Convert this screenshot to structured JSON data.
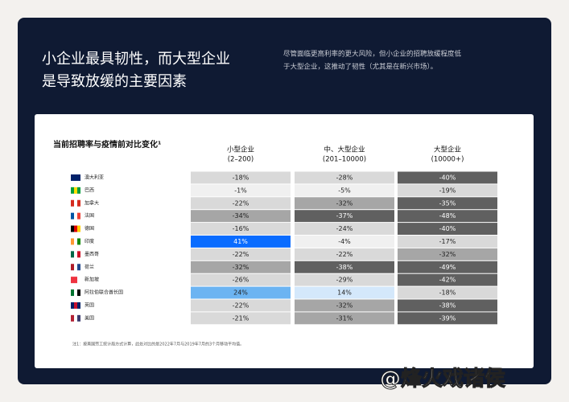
{
  "header": {
    "title": [
      "小企业最具韧性，而大型企业",
      "是导致放缓的主要因素"
    ],
    "description": [
      "尽管面临更高利率的更大风险，但小企业的招聘放缓程度低",
      "于大型企业，这推动了韧性（尤其是在新兴市场）。"
    ]
  },
  "table": {
    "caption": "当前招聘率与疫情前对比变化¹",
    "columns": [
      [
        "小型企业",
        "(2–200)"
      ],
      [
        "中、大型企业",
        "(201–10000)"
      ],
      [
        "大型企业",
        "(10000+)"
      ]
    ],
    "rows": [
      {
        "country": "澳大利亚",
        "cells": [
          {
            "text": "-18%",
            "color": "#d9d9d9"
          },
          {
            "text": "-28%",
            "color": "#d9d9d9"
          },
          {
            "text": "-40%",
            "color": "#606060"
          }
        ]
      },
      {
        "country": "巴西",
        "cells": [
          {
            "text": "-1%",
            "color": "#f0f0f0"
          },
          {
            "text": "-5%",
            "color": "#f0f0f0"
          },
          {
            "text": "-19%",
            "color": "#d9d9d9"
          }
        ]
      },
      {
        "country": "加拿大",
        "cells": [
          {
            "text": "-22%",
            "color": "#d9d9d9"
          },
          {
            "text": "-32%",
            "color": "#a6a6a6"
          },
          {
            "text": "-35%",
            "color": "#606060"
          }
        ]
      },
      {
        "country": "法国",
        "cells": [
          {
            "text": "-34%",
            "color": "#a6a6a6"
          },
          {
            "text": "-37%",
            "color": "#606060"
          },
          {
            "text": "-48%",
            "color": "#606060"
          }
        ]
      },
      {
        "country": "德国",
        "cells": [
          {
            "text": "-16%",
            "color": "#d9d9d9"
          },
          {
            "text": "-24%",
            "color": "#d9d9d9"
          },
          {
            "text": "-40%",
            "color": "#606060"
          }
        ]
      },
      {
        "country": "印度",
        "cells": [
          {
            "text": "41%",
            "color": "#0a6cff"
          },
          {
            "text": "-4%",
            "color": "#f0f0f0"
          },
          {
            "text": "-17%",
            "color": "#d9d9d9"
          }
        ]
      },
      {
        "country": "墨西哥",
        "cells": [
          {
            "text": "-22%",
            "color": "#d9d9d9"
          },
          {
            "text": "-22%",
            "color": "#d9d9d9"
          },
          {
            "text": "-32%",
            "color": "#a6a6a6"
          }
        ]
      },
      {
        "country": "荷兰",
        "cells": [
          {
            "text": "-32%",
            "color": "#a6a6a6"
          },
          {
            "text": "-38%",
            "color": "#606060"
          },
          {
            "text": "-49%",
            "color": "#606060"
          }
        ]
      },
      {
        "country": "新加坡",
        "cells": [
          {
            "text": "-26%",
            "color": "#d9d9d9"
          },
          {
            "text": "-29%",
            "color": "#d9d9d9"
          },
          {
            "text": "-42%",
            "color": "#606060"
          }
        ]
      },
      {
        "country": "阿拉伯联合酋长国",
        "cells": [
          {
            "text": "24%",
            "color": "#6cb4f2"
          },
          {
            "text": "14%",
            "color": "#d4e8fb"
          },
          {
            "text": "-18%",
            "color": "#d9d9d9"
          }
        ]
      },
      {
        "country": "英国",
        "cells": [
          {
            "text": "-22%",
            "color": "#d9d9d9"
          },
          {
            "text": "-32%",
            "color": "#a6a6a6"
          },
          {
            "text": "-38%",
            "color": "#606060"
          }
        ]
      },
      {
        "country": "美国",
        "cells": [
          {
            "text": "-21%",
            "color": "#d9d9d9"
          },
          {
            "text": "-31%",
            "color": "#a6a6a6"
          },
          {
            "text": "-39%",
            "color": "#606060"
          }
        ]
      }
    ]
  },
  "footnote": "注1：按美国劳工统计局方式计算，此处对比的是2022年7月与2019年7月的3个月移动平均值。",
  "watermark": "@烽火戏诸侯"
}
